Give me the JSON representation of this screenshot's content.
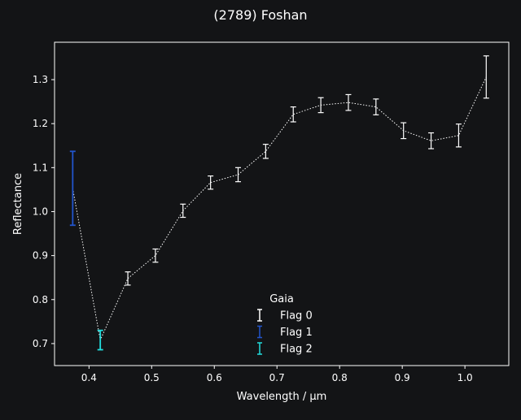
{
  "chart_data": {
    "type": "scatter",
    "title": "(2789) Foshan",
    "xlabel": "Wavelength / μm",
    "ylabel": "Reflectance",
    "xlim": [
      0.345,
      1.07
    ],
    "ylim": [
      0.65,
      1.385
    ],
    "xticks": [
      0.4,
      0.5,
      0.6,
      0.7,
      0.8,
      0.9,
      1.0
    ],
    "xtick_labels": [
      "0.4",
      "0.5",
      "0.6",
      "0.7",
      "0.8",
      "0.9",
      "1.0"
    ],
    "yticks": [
      0.7,
      0.8,
      0.9,
      1.0,
      1.1,
      1.2,
      1.3
    ],
    "ytick_labels": [
      "0.7",
      "0.8",
      "0.9",
      "1.0",
      "1.1",
      "1.2",
      "1.3"
    ],
    "grid": false,
    "line_style": "dotted",
    "legend": {
      "title": "Gaia",
      "placement": "bottom-center",
      "entries": [
        {
          "label": "Flag 0",
          "color": "#ffffff"
        },
        {
          "label": "Flag 1",
          "color": "#2255cc"
        },
        {
          "label": "Flag 2",
          "color": "#22dddd"
        }
      ]
    },
    "series": [
      {
        "name": "Flag 0",
        "color": "#ffffff",
        "points": [
          {
            "x": 0.462,
            "y": 0.848,
            "err": 0.015
          },
          {
            "x": 0.506,
            "y": 0.9,
            "err": 0.015
          },
          {
            "x": 0.55,
            "y": 1.002,
            "err": 0.015
          },
          {
            "x": 0.594,
            "y": 1.066,
            "err": 0.015
          },
          {
            "x": 0.638,
            "y": 1.084,
            "err": 0.016
          },
          {
            "x": 0.682,
            "y": 1.137,
            "err": 0.016
          },
          {
            "x": 0.726,
            "y": 1.221,
            "err": 0.017
          },
          {
            "x": 0.77,
            "y": 1.242,
            "err": 0.017
          },
          {
            "x": 0.814,
            "y": 1.248,
            "err": 0.018
          },
          {
            "x": 0.858,
            "y": 1.238,
            "err": 0.018
          },
          {
            "x": 0.902,
            "y": 1.184,
            "err": 0.018
          },
          {
            "x": 0.946,
            "y": 1.161,
            "err": 0.018
          },
          {
            "x": 0.99,
            "y": 1.173,
            "err": 0.026
          },
          {
            "x": 1.034,
            "y": 1.306,
            "err": 0.048
          }
        ]
      },
      {
        "name": "Flag 1",
        "color": "#2255cc",
        "points": [
          {
            "x": 0.374,
            "y": 1.053,
            "err": 0.084
          }
        ]
      },
      {
        "name": "Flag 2",
        "color": "#22dddd",
        "points": [
          {
            "x": 0.418,
            "y": 0.708,
            "err": 0.022
          }
        ]
      }
    ]
  }
}
